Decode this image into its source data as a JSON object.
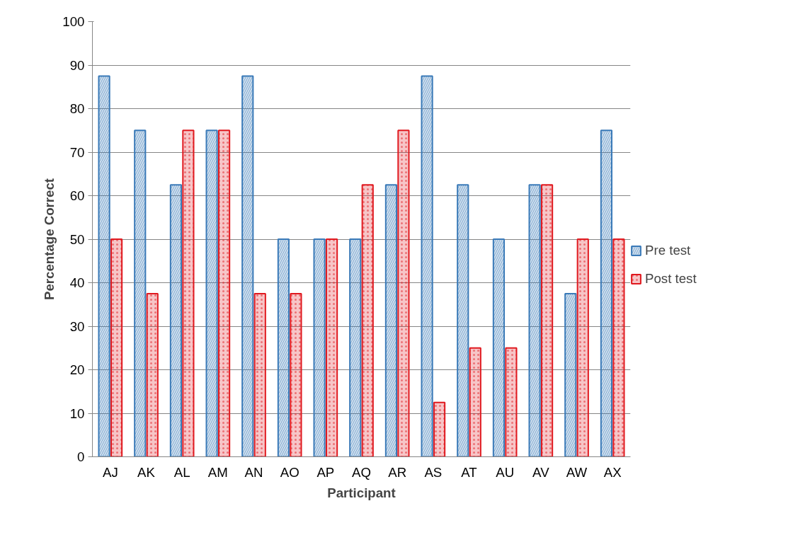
{
  "chart_data": {
    "type": "bar",
    "xlabel": "Participant",
    "ylabel": "Percentage Correct",
    "categories": [
      "AJ",
      "AK",
      "AL",
      "AM",
      "AN",
      "AO",
      "AP",
      "AQ",
      "AR",
      "AS",
      "AT",
      "AU",
      "AV",
      "AW",
      "AX"
    ],
    "series": [
      {
        "name": "Pre test",
        "color": "#3a7ab8",
        "values": [
          87.5,
          75,
          62.5,
          75,
          87.5,
          50,
          50,
          50,
          62.5,
          87.5,
          62.5,
          50,
          62.5,
          37.5,
          75
        ]
      },
      {
        "name": "Post test",
        "color": "#e0191f",
        "values": [
          50,
          37.5,
          75,
          75,
          37.5,
          37.5,
          50,
          62.5,
          75,
          12.5,
          25,
          25,
          62.5,
          50,
          50
        ]
      }
    ],
    "ylim": [
      0,
      100
    ],
    "yticks": [
      0,
      10,
      20,
      30,
      40,
      50,
      60,
      70,
      80,
      90,
      100
    ],
    "grid": "y",
    "legend": "right"
  }
}
